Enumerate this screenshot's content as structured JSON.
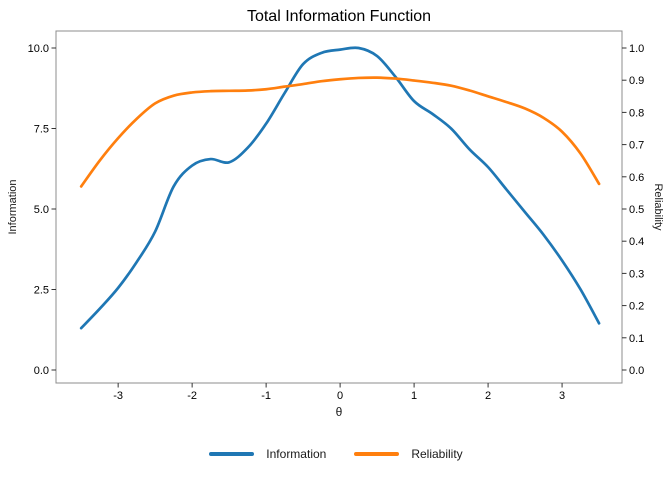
{
  "colors": {
    "information": "#1f77b4",
    "reliability": "#ff7f0e",
    "panel_border": "#8c8c8c",
    "tick_mark": "#333333",
    "tick_text": "#000000",
    "label_text": "#1a1a1a",
    "background": "#ffffff"
  },
  "chart_data": {
    "type": "line",
    "title": "Total Information Function",
    "xlabel": "θ",
    "ylabel_left": "Information",
    "ylabel_right": "Reliability",
    "legend_position": "bottom",
    "grid": false,
    "xlim": [
      -3.84,
      3.81
    ],
    "ylim_left": [
      -0.404,
      10.528
    ],
    "ylim_right": [
      -0.0404,
      1.0528
    ],
    "x_tick_values": [
      -3,
      -2,
      -1,
      0,
      1,
      2,
      3
    ],
    "x_tick_labels": [
      "-3",
      "-2",
      "-1",
      "0",
      "1",
      "2",
      "3"
    ],
    "left_tick_values": [
      0.0,
      2.5,
      5.0,
      7.5,
      10.0
    ],
    "left_tick_labels": [
      "0.0",
      "2.5",
      "5.0",
      "7.5",
      "10.0"
    ],
    "right_tick_values": [
      0.0,
      0.1,
      0.2,
      0.3,
      0.4,
      0.5,
      0.6,
      0.7,
      0.8,
      0.9,
      1.0
    ],
    "right_tick_labels": [
      "0.0",
      "0.1",
      "0.2",
      "0.3",
      "0.4",
      "0.5",
      "0.6",
      "0.7",
      "0.8",
      "0.9",
      "1.0"
    ],
    "x": [
      -3.5,
      -3.25,
      -3.0,
      -2.75,
      -2.5,
      -2.25,
      -2.0,
      -1.75,
      -1.5,
      -1.25,
      -1.0,
      -0.75,
      -0.5,
      -0.25,
      0.0,
      0.25,
      0.5,
      0.75,
      1.0,
      1.25,
      1.5,
      1.75,
      2.0,
      2.25,
      2.5,
      2.75,
      3.0,
      3.25,
      3.5
    ],
    "series": [
      {
        "name": "Information",
        "axis": "left",
        "color": "#1f77b4",
        "values": [
          1.3,
          1.9,
          2.55,
          3.35,
          4.3,
          5.7,
          6.35,
          6.55,
          6.45,
          6.9,
          7.65,
          8.6,
          9.5,
          9.85,
          9.95,
          10.0,
          9.75,
          9.1,
          8.35,
          7.95,
          7.5,
          6.85,
          6.3,
          5.6,
          4.9,
          4.2,
          3.4,
          2.5,
          1.45
        ]
      },
      {
        "name": "Reliability",
        "axis": "right",
        "color": "#ff7f0e",
        "values": [
          0.57,
          0.65,
          0.72,
          0.78,
          0.828,
          0.852,
          0.862,
          0.866,
          0.867,
          0.868,
          0.872,
          0.88,
          0.888,
          0.897,
          0.903,
          0.907,
          0.908,
          0.905,
          0.899,
          0.892,
          0.883,
          0.868,
          0.85,
          0.832,
          0.812,
          0.783,
          0.74,
          0.672,
          0.578
        ]
      }
    ]
  }
}
